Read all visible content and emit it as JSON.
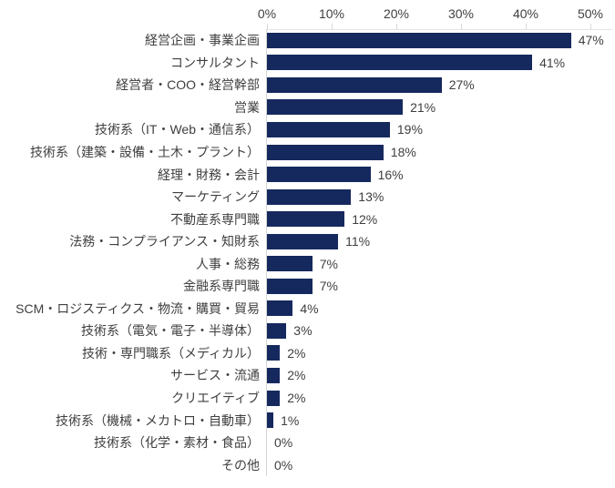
{
  "chart_data": {
    "type": "bar",
    "orientation": "horizontal",
    "title": "",
    "xlabel": "",
    "ylabel": "",
    "categories": [
      "経営企画・事業企画",
      "コンサルタント",
      "経営者・COO・経営幹部",
      "営業",
      "技術系（IT・Web・通信系）",
      "技術系（建築・設備・土木・プラント）",
      "経理・財務・会計",
      "マーケティング",
      "不動産系専門職",
      "法務・コンプライアンス・知財系",
      "人事・総務",
      "金融系専門職",
      "SCM・ロジスティクス・物流・購買・貿易",
      "技術系（電気・電子・半導体）",
      "技術・専門職系（メディカル）",
      "サービス・流通",
      "クリエイティブ",
      "技術系（機械・メカトロ・自動車）",
      "技術系（化学・素材・食品）",
      "その他"
    ],
    "values": [
      47,
      41,
      27,
      21,
      19,
      18,
      16,
      13,
      12,
      11,
      7,
      7,
      4,
      3,
      2,
      2,
      2,
      1,
      0,
      0
    ],
    "value_suffix": "%",
    "axis_ticks": [
      "0%",
      "10%",
      "20%",
      "30%",
      "40%",
      "50%"
    ],
    "xlim": [
      0,
      50
    ],
    "grid": false,
    "legend": false,
    "colors": {
      "bar": "#16295e",
      "text": "#3f3f3f",
      "axis_line": "#d6d6d6"
    }
  }
}
